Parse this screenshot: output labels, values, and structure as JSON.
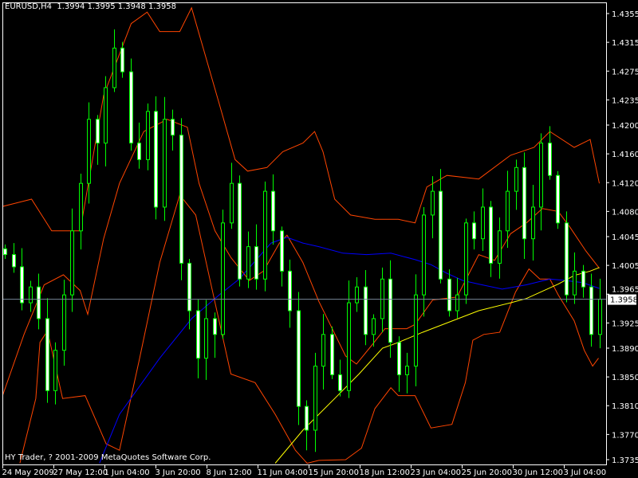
{
  "header": {
    "symbol": "EURUSD,H4",
    "open": "1.3994",
    "high": "1.3995",
    "low": "1.3948",
    "close": "1.3958"
  },
  "footer": {
    "copyright": "HY Trader, ? 2001-2009 MetaQuotes Software Corp."
  },
  "colors": {
    "background": "#000000",
    "candle": "#00ff00",
    "bear_body": "#ffffff",
    "bands": "#ff4500",
    "ma_blue": "#0000ff",
    "ma_yellow": "#ffff00",
    "price_line": "#778899",
    "axis": "#ffffff"
  },
  "chart_data": {
    "type": "candlestick",
    "ylim": [
      1.373,
      1.4365
    ],
    "price_ticks": [
      "1.4355",
      "1.4315",
      "1.4275",
      "1.4235",
      "1.4200",
      "1.4160",
      "1.4120",
      "1.4080",
      "1.4045",
      "1.4005",
      "1.3965",
      "1.3925",
      "1.3890",
      "1.3850",
      "1.3810",
      "1.3770",
      "1.3735"
    ],
    "time_ticks": [
      "24 May 2009",
      "27 May 12:00",
      "1 Jun 04:00",
      "3 Jun 20:00",
      "8 Jun 12:00",
      "11 Jun 04:00",
      "15 Jun 20:00",
      "18 Jun 12:00",
      "23 Jun 04:00",
      "25 Jun 20:00",
      "30 Jun 12:00",
      "3 Jul 04:00"
    ],
    "current_price": "1.3958",
    "close": [
      1.402,
      1.4003,
      1.3953,
      1.3975,
      1.3931,
      1.3831,
      1.3887,
      1.3964,
      1.4053,
      1.4119,
      1.4208,
      1.4175,
      1.4252,
      1.4307,
      1.4274,
      1.4175,
      1.4152,
      1.4219,
      1.4086,
      1.4208,
      1.4186,
      1.4008,
      1.3942,
      1.3876,
      1.3931,
      1.3909,
      1.4064,
      1.4119,
      1.3986,
      1.4031,
      1.3986,
      1.4108,
      1.4053,
      1.3997,
      1.3942,
      1.3809,
      1.3776,
      1.3865,
      1.3909,
      1.3853,
      1.3831,
      1.3953,
      1.3975,
      1.3909,
      1.3931,
      1.3986,
      1.3898,
      1.3853,
      1.3865,
      1.3964,
      1.4075,
      1.4108,
      1.3986,
      1.3942,
      1.3964,
      1.4064,
      1.4042,
      1.4086,
      1.4008,
      1.4053,
      1.4108,
      1.4141,
      1.4042,
      1.4086,
      1.4175,
      1.413,
      1.4064,
      1.3964,
      1.3997,
      1.3975,
      1.3909,
      1.3958
    ],
    "lines": {
      "upper_band": [
        [
          -0.6,
          1.4086
        ],
        [
          3.2,
          1.4097
        ],
        [
          5.6,
          1.4053
        ],
        [
          9.0,
          1.4053
        ],
        [
          11.8,
          1.4241
        ],
        [
          15.1,
          1.4341
        ],
        [
          17.0,
          1.4357
        ],
        [
          18.5,
          1.433
        ],
        [
          20.9,
          1.433
        ],
        [
          22.3,
          1.4363
        ],
        [
          23.7,
          1.4307
        ],
        [
          25.6,
          1.423
        ],
        [
          27.5,
          1.4152
        ],
        [
          29.0,
          1.4136
        ],
        [
          31.3,
          1.4141
        ],
        [
          33.2,
          1.4163
        ],
        [
          35.6,
          1.4175
        ],
        [
          37.0,
          1.4191
        ],
        [
          38.0,
          1.4163
        ],
        [
          39.4,
          1.4097
        ],
        [
          41.3,
          1.4075
        ],
        [
          44.2,
          1.4069
        ],
        [
          47.0,
          1.4069
        ],
        [
          49.0,
          1.4064
        ],
        [
          50.4,
          1.4114
        ],
        [
          52.8,
          1.413
        ],
        [
          56.6,
          1.4125
        ],
        [
          60.4,
          1.4158
        ],
        [
          63.2,
          1.4169
        ],
        [
          65.1,
          1.4191
        ],
        [
          68.0,
          1.4169
        ],
        [
          69.9,
          1.418
        ],
        [
          71.0,
          1.4119
        ]
      ],
      "middle_band": [
        [
          -0.3,
          1.3823
        ],
        [
          2.3,
          1.3909
        ],
        [
          4.7,
          1.3978
        ],
        [
          7.0,
          1.3992
        ],
        [
          9.0,
          1.397
        ],
        [
          9.9,
          1.3937
        ],
        [
          11.8,
          1.4042
        ],
        [
          13.7,
          1.4119
        ],
        [
          16.6,
          1.4191
        ],
        [
          19.4,
          1.4208
        ],
        [
          21.8,
          1.4197
        ],
        [
          23.2,
          1.4119
        ],
        [
          25.1,
          1.4053
        ],
        [
          27.0,
          1.4016
        ],
        [
          29.2,
          1.3984
        ],
        [
          30.9,
          1.3997
        ],
        [
          32.8,
          1.4036
        ],
        [
          33.7,
          1.4047
        ],
        [
          35.6,
          1.4009
        ],
        [
          37.5,
          1.3955
        ],
        [
          40.7,
          1.3879
        ],
        [
          42.0,
          1.3868
        ],
        [
          43.9,
          1.3895
        ],
        [
          45.4,
          1.3917
        ],
        [
          48.0,
          1.3917
        ],
        [
          49.0,
          1.3923
        ],
        [
          51.1,
          1.3957
        ],
        [
          54.0,
          1.3961
        ],
        [
          56.6,
          1.402
        ],
        [
          58.5,
          1.4012
        ],
        [
          60.4,
          1.4049
        ],
        [
          62.3,
          1.4064
        ],
        [
          64.2,
          1.4084
        ],
        [
          66.1,
          1.408
        ],
        [
          67.5,
          1.4058
        ],
        [
          69.4,
          1.4025
        ],
        [
          71.0,
          1.4001
        ]
      ],
      "lower_band": [
        [
          1.8,
          1.373
        ],
        [
          3.7,
          1.382
        ],
        [
          4.2,
          1.3898
        ],
        [
          5.1,
          1.3914
        ],
        [
          6.9,
          1.382
        ],
        [
          9.6,
          1.3824
        ],
        [
          12.1,
          1.3757
        ],
        [
          13.7,
          1.3748
        ],
        [
          16.1,
          1.3876
        ],
        [
          18.5,
          1.4009
        ],
        [
          20.9,
          1.4103
        ],
        [
          22.8,
          1.4075
        ],
        [
          24.7,
          1.3975
        ],
        [
          27.0,
          1.3854
        ],
        [
          29.9,
          1.3842
        ],
        [
          32.3,
          1.3798
        ],
        [
          34.7,
          1.3748
        ],
        [
          36.1,
          1.373
        ],
        [
          37.5,
          1.3734
        ],
        [
          40.7,
          1.3735
        ],
        [
          42.6,
          1.3751
        ],
        [
          44.2,
          1.3806
        ],
        [
          46.1,
          1.3835
        ],
        [
          47.0,
          1.3824
        ],
        [
          49.0,
          1.3824
        ],
        [
          50.9,
          1.3779
        ],
        [
          53.4,
          1.3784
        ],
        [
          55.0,
          1.3842
        ],
        [
          55.9,
          1.3901
        ],
        [
          57.2,
          1.3909
        ],
        [
          59.1,
          1.3912
        ],
        [
          61.0,
          1.3968
        ],
        [
          62.6,
          1.4
        ],
        [
          63.9,
          1.3986
        ],
        [
          65.1,
          1.3986
        ],
        [
          66.1,
          1.3964
        ],
        [
          68.0,
          1.3928
        ],
        [
          69.2,
          1.3887
        ],
        [
          70.2,
          1.3865
        ],
        [
          70.9,
          1.3876
        ]
      ],
      "ma_blue": [
        [
          11.3,
          1.373
        ],
        [
          13.7,
          1.3798
        ],
        [
          18.5,
          1.3876
        ],
        [
          22.3,
          1.3931
        ],
        [
          25.6,
          1.3964
        ],
        [
          28.0,
          1.3986
        ],
        [
          31.8,
          1.4036
        ],
        [
          33.7,
          1.4044
        ],
        [
          35.6,
          1.4036
        ],
        [
          37.5,
          1.4031
        ],
        [
          40.4,
          1.4022
        ],
        [
          43.2,
          1.402
        ],
        [
          46.1,
          1.4022
        ],
        [
          49.0,
          1.4013
        ],
        [
          50.9,
          1.4006
        ],
        [
          52.8,
          1.3994
        ],
        [
          54.7,
          1.3984
        ],
        [
          56.6,
          1.3979
        ],
        [
          59.4,
          1.3972
        ],
        [
          62.3,
          1.3978
        ],
        [
          65.1,
          1.3986
        ],
        [
          67.0,
          1.3984
        ],
        [
          69.0,
          1.3981
        ],
        [
          71.0,
          1.3973
        ]
      ],
      "ma_yellow": [
        [
          32.3,
          1.373
        ],
        [
          35.6,
          1.3776
        ],
        [
          39.4,
          1.382
        ],
        [
          42.3,
          1.3854
        ],
        [
          45.1,
          1.389
        ],
        [
          47.0,
          1.3898
        ],
        [
          49.9,
          1.3912
        ],
        [
          52.8,
          1.3925
        ],
        [
          56.6,
          1.3942
        ],
        [
          60.4,
          1.3953
        ],
        [
          62.3,
          1.3959
        ],
        [
          66.1,
          1.3979
        ],
        [
          68.0,
          1.3991
        ],
        [
          69.9,
          1.3997
        ],
        [
          71.0,
          1.4002
        ]
      ]
    }
  }
}
